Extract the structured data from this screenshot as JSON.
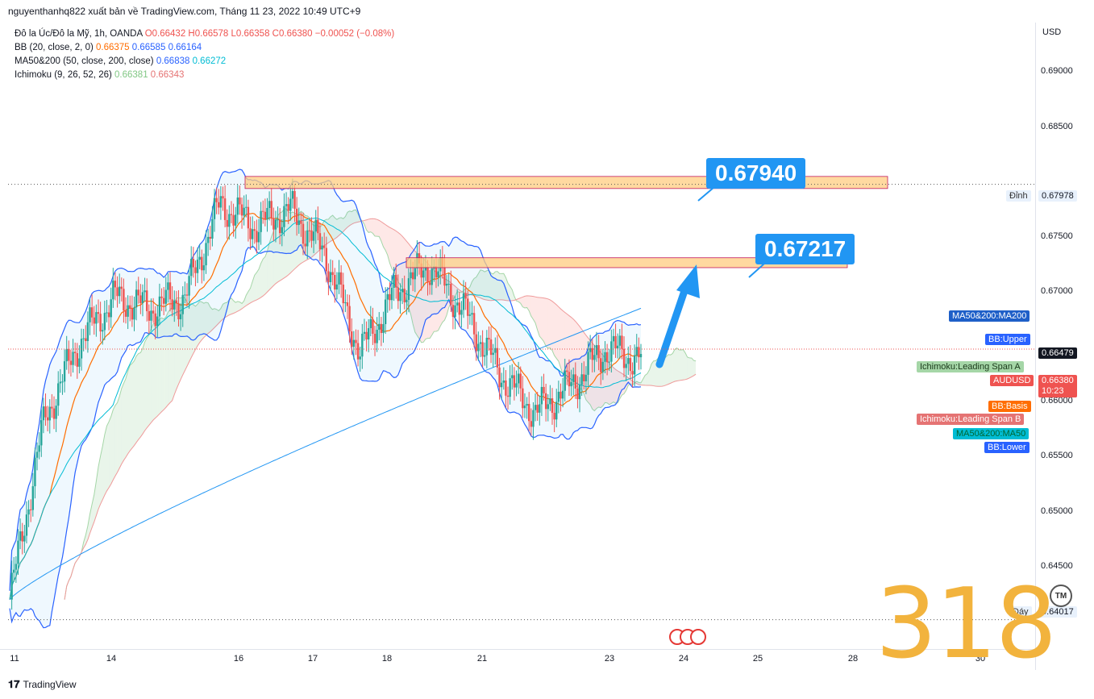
{
  "header": {
    "attribution": "nguyenthanhq822 xuất bản về TradingView.com, Tháng 11 23, 2022 10:49 UTC+9"
  },
  "legend": {
    "symbol": {
      "name": "Đô la Úc/Đô la Mỹ, 1h, OANDA",
      "open": "O0.66432",
      "high": "H0.66578",
      "low": "L0.66358",
      "close": "C0.66380",
      "change": "−0.00052 (−0.08%)"
    },
    "bb": {
      "name": "BB (20, close, 2, 0)",
      "basis": "0.66375",
      "upper": "0.66585",
      "lower": "0.66164"
    },
    "ma": {
      "name": "MA50&200 (50, close, 200, close)",
      "ma50": "0.66838",
      "ma200": "0.66272"
    },
    "ichimoku": {
      "name": "Ichimoku (9, 26, 52, 26)",
      "span_a": "0.66381",
      "span_b": "0.66343"
    }
  },
  "axis": {
    "currency": "USD",
    "price_ticks": [
      "0.69000",
      "0.68500",
      "0.67500",
      "0.67000",
      "0.66000",
      "0.65500",
      "0.65000",
      "0.64500"
    ],
    "time_ticks": [
      "11",
      "14",
      "16",
      "17",
      "18",
      "21",
      "23",
      "24",
      "25",
      "28",
      "30"
    ]
  },
  "tags": {
    "top_label": "Đỉnh",
    "top_value": "0.67978",
    "bottom_label": "Đáy",
    "bottom_value": "0.64017",
    "ma200": "MA50&200:MA200",
    "bb_upper": "BB:Upper",
    "crosshair_value": "0.66479",
    "span_a": "Ichimoku:Leading Span A",
    "symbol": "AUDUSD",
    "last_price": "0.66380",
    "countdown": "10:23",
    "bb_basis": "BB:Basis",
    "span_b": "Ichimoku:Leading Span B",
    "ma50": "MA50&200:MA50",
    "bb_lower": "BB:Lower"
  },
  "annotations": {
    "target1": "0.67940",
    "target2": "0.67217",
    "overlay_number": "318",
    "tm": "TM"
  },
  "footer": {
    "brand": "TradingView"
  },
  "colors": {
    "up": "#26a69a",
    "down": "#ef5350",
    "bb": "#2962ff",
    "basis": "#ff6d00",
    "ma50": "#00bcd4",
    "ma200": "#2196f3",
    "zone": "#ffcc80",
    "callout": "#2196f3"
  },
  "chart_data": {
    "type": "candlestick",
    "symbol": "AUDUSD",
    "timeframe": "1h",
    "x_ticks": [
      "11",
      "14",
      "16",
      "17",
      "18",
      "21",
      "23",
      "24",
      "25",
      "28",
      "30"
    ],
    "ylim": [
      0.6375,
      0.6945
    ],
    "approx_close_path": [
      {
        "x": "11",
        "y": 0.642
      },
      {
        "x": "11",
        "y": 0.6585
      },
      {
        "x": "12",
        "y": 0.6655
      },
      {
        "x": "13",
        "y": 0.6695
      },
      {
        "x": "14",
        "y": 0.6685
      },
      {
        "x": "15",
        "y": 0.6695
      },
      {
        "x": "16",
        "y": 0.678
      },
      {
        "x": "16",
        "y": 0.676
      },
      {
        "x": "17",
        "y": 0.6775
      },
      {
        "x": "17",
        "y": 0.6735
      },
      {
        "x": "18",
        "y": 0.6645
      },
      {
        "x": "18",
        "y": 0.67
      },
      {
        "x": "21",
        "y": 0.6725
      },
      {
        "x": "21",
        "y": 0.668
      },
      {
        "x": "22",
        "y": 0.6625
      },
      {
        "x": "22",
        "y": 0.659
      },
      {
        "x": "23",
        "y": 0.6615
      },
      {
        "x": "23",
        "y": 0.6648
      },
      {
        "x": "23",
        "y": 0.6638
      }
    ],
    "resistance_zones": [
      {
        "label": "0.67940",
        "y_low": 0.6794,
        "y_high": 0.6805
      },
      {
        "label": "0.67217",
        "y_low": 0.6722,
        "y_high": 0.6731
      }
    ],
    "levels": [
      {
        "name": "Đỉnh",
        "y": 0.67978
      },
      {
        "name": "Đáy",
        "y": 0.64017
      },
      {
        "name": "current",
        "y": 0.66479
      }
    ]
  }
}
